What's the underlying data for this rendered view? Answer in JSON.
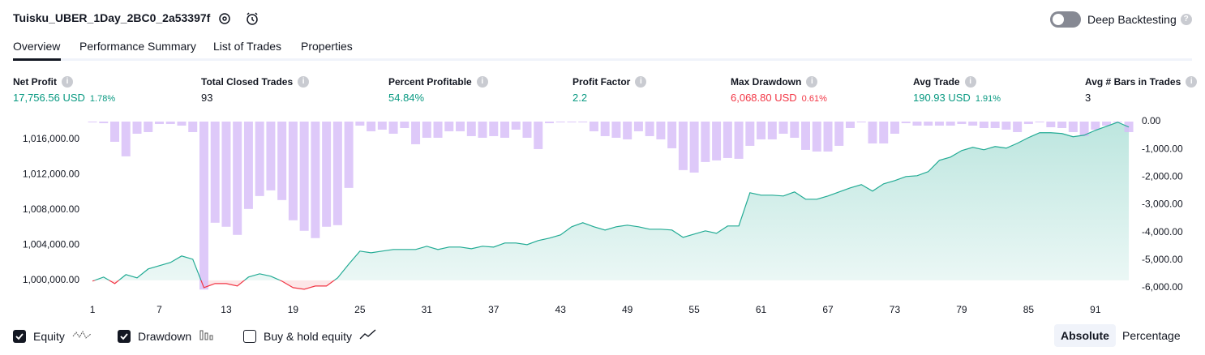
{
  "header": {
    "title": "Tuisku_UBER_1Day_2BC0_2a53397f",
    "toggle_label": "Deep Backtesting"
  },
  "tabs": [
    "Overview",
    "Performance Summary",
    "List of Trades",
    "Properties"
  ],
  "metrics": [
    {
      "label": "Net Profit",
      "value": "17,756.56 USD",
      "percent": "1.78%",
      "tone": "positive"
    },
    {
      "label": "Total Closed Trades",
      "value": "93",
      "tone": "neutral"
    },
    {
      "label": "Percent Profitable",
      "value": "54.84%",
      "tone": "positive"
    },
    {
      "label": "Profit Factor",
      "value": "2.2",
      "tone": "positive"
    },
    {
      "label": "Max Drawdown",
      "value": "6,068.80 USD",
      "percent": "0.61%",
      "tone": "negative"
    },
    {
      "label": "Avg Trade",
      "value": "190.93 USD",
      "percent": "1.91%",
      "tone": "positive"
    },
    {
      "label": "Avg # Bars in Trades",
      "value": "3",
      "tone": "neutral"
    }
  ],
  "chart_data": {
    "type": "line",
    "x": [
      1,
      2,
      3,
      4,
      5,
      6,
      7,
      8,
      9,
      10,
      11,
      12,
      13,
      14,
      15,
      16,
      17,
      18,
      19,
      20,
      21,
      22,
      23,
      24,
      25,
      26,
      27,
      28,
      29,
      30,
      31,
      32,
      33,
      34,
      35,
      36,
      37,
      38,
      39,
      40,
      41,
      42,
      43,
      44,
      45,
      46,
      47,
      48,
      49,
      50,
      51,
      52,
      53,
      54,
      55,
      56,
      57,
      58,
      59,
      60,
      61,
      62,
      63,
      64,
      65,
      66,
      67,
      68,
      69,
      70,
      71,
      72,
      73,
      74,
      75,
      76,
      77,
      78,
      79,
      80,
      81,
      82,
      83,
      84,
      85,
      86,
      87,
      88,
      89,
      90,
      91,
      92,
      93,
      94
    ],
    "series": [
      {
        "name": "Equity",
        "type": "line",
        "axis": "y",
        "color": "#22ab94",
        "below_color": "#f23645",
        "checked": true,
        "values": [
          999908,
          1000368,
          999632,
          1000644,
          1000276,
          1001287,
          1001655,
          1002023,
          1002759,
          1002391,
          999172,
          999632,
          999632,
          999356,
          1000368,
          1000736,
          1000460,
          999908,
          999172,
          998989,
          999356,
          999356,
          1000276,
          1001839,
          1003310,
          1003126,
          1003310,
          1003494,
          1003494,
          1003494,
          1003862,
          1003494,
          1003770,
          1003770,
          1003586,
          1003862,
          1003770,
          1004230,
          1004230,
          1004046,
          1004506,
          1004782,
          1005149,
          1006069,
          1006529,
          1006069,
          1005701,
          1006069,
          1006253,
          1006069,
          1005793,
          1005793,
          1005701,
          1004874,
          1005241,
          1005609,
          1005333,
          1006161,
          1006161,
          1009931,
          1009655,
          1009655,
          1009563,
          1010023,
          1009195,
          1009195,
          1009563,
          1010023,
          1010483,
          1010851,
          1010115,
          1010942,
          1011310,
          1011770,
          1011862,
          1012322,
          1013609,
          1013977,
          1014712,
          1015080,
          1014804,
          1015172,
          1014988,
          1015540,
          1016184,
          1016736,
          1016736,
          1016644,
          1016276,
          1016460,
          1017011,
          1017471,
          1017931,
          1017379
        ]
      },
      {
        "name": "Drawdown",
        "type": "bar",
        "axis": "y2",
        "color": "#d6bbf8",
        "checked": true,
        "values": [
          -29,
          -58,
          -731,
          -1257,
          -439,
          -380,
          -88,
          -88,
          -146,
          -380,
          -6069,
          -3655,
          -3801,
          -4094,
          -3158,
          -2690,
          -2485,
          -2836,
          -3567,
          -3947,
          -4210,
          -3801,
          -3743,
          -2398,
          -146,
          -351,
          -292,
          -439,
          -234,
          -819,
          -585,
          -585,
          -351,
          -351,
          -526,
          -585,
          -526,
          -585,
          -292,
          -585,
          -994,
          -58,
          -29,
          -29,
          -29,
          -351,
          -526,
          -585,
          -643,
          -351,
          -526,
          -643,
          -965,
          -1754,
          -1842,
          -1462,
          -1404,
          -1316,
          -1345,
          -877,
          -643,
          -643,
          -439,
          -585,
          -1023,
          -1082,
          -1082,
          -877,
          -234,
          -29,
          -790,
          -790,
          -439,
          -58,
          -146,
          -146,
          -146,
          -146,
          -88,
          -146,
          -234,
          -234,
          -292,
          -380,
          -88,
          -29,
          -205,
          -234,
          -380,
          -526,
          -292,
          -146,
          -29,
          -380
        ]
      }
    ],
    "unchecked_series": [
      "Buy & hold equity"
    ],
    "xlim": [
      0.56,
      94.36
    ],
    "xticks": [
      1,
      7,
      13,
      19,
      25,
      31,
      37,
      43,
      49,
      55,
      61,
      67,
      73,
      79,
      85,
      91
    ],
    "ylim": [
      998700,
      1018000
    ],
    "yticks": [
      {
        "value": 1000000,
        "label": "1,000,000.00"
      },
      {
        "value": 1004000,
        "label": "1,004,000.00"
      },
      {
        "value": 1008000,
        "label": "1,008,000.00"
      },
      {
        "value": 1012000,
        "label": "1,012,000.00"
      },
      {
        "value": 1016000,
        "label": "1,016,000.00"
      }
    ],
    "y2lim": [
      -6150,
      0
    ],
    "y2ticks": [
      {
        "value": 0,
        "label": "0.00"
      },
      {
        "value": -1000,
        "label": "-1,000.00"
      },
      {
        "value": -2000,
        "label": "-2,000.00"
      },
      {
        "value": -3000,
        "label": "-3,000.00"
      },
      {
        "value": -4000,
        "label": "-4,000.00"
      },
      {
        "value": -5000,
        "label": "-5,000.00"
      },
      {
        "value": -6000,
        "label": "-6,000.00"
      }
    ],
    "grid": false,
    "scale_modes": [
      "Absolute",
      "Percentage"
    ],
    "active_scale_mode": 0
  }
}
